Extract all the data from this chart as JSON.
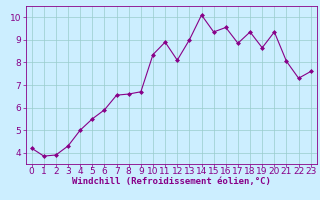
{
  "x": [
    0,
    1,
    2,
    3,
    4,
    5,
    6,
    7,
    8,
    9,
    10,
    11,
    12,
    13,
    14,
    15,
    16,
    17,
    18,
    19,
    20,
    21,
    22,
    23
  ],
  "y": [
    4.2,
    3.85,
    3.9,
    4.3,
    5.0,
    5.5,
    5.9,
    6.55,
    6.6,
    6.7,
    8.35,
    8.9,
    8.1,
    9.0,
    10.1,
    9.35,
    9.55,
    8.85,
    9.35,
    8.65,
    9.35,
    8.05,
    7.3,
    7.6
  ],
  "line_color": "#880088",
  "marker_color": "#880088",
  "bg_color": "#cceeff",
  "grid_color": "#99cccc",
  "xlabel": "Windchill (Refroidissement éolien,°C)",
  "xlabel_color": "#880088",
  "tick_color": "#880088",
  "spine_color": "#880088",
  "ylim": [
    3.5,
    10.5
  ],
  "xlim": [
    -0.5,
    23.5
  ],
  "yticks": [
    4,
    5,
    6,
    7,
    8,
    9,
    10
  ],
  "xticks": [
    0,
    1,
    2,
    3,
    4,
    5,
    6,
    7,
    8,
    9,
    10,
    11,
    12,
    13,
    14,
    15,
    16,
    17,
    18,
    19,
    20,
    21,
    22,
    23
  ],
  "xlabel_fontsize": 6.5,
  "tick_fontsize": 6.5
}
